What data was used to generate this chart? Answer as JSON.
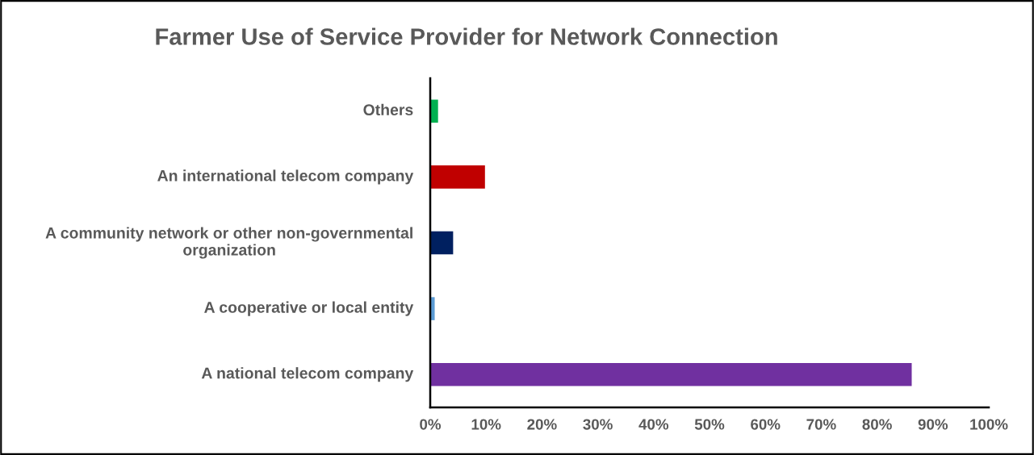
{
  "chart_data": {
    "type": "bar",
    "orientation": "horizontal",
    "title": "Farmer Use of Service Provider for Network Connection",
    "categories": [
      "Others",
      "An international telecom company",
      "A community network or other non-governmental organization",
      "A cooperative or local entity",
      "A national telecom company"
    ],
    "values": [
      1.4,
      9.8,
      4.1,
      0.8,
      86.2
    ],
    "colors": [
      "#00b050",
      "#c00000",
      "#002060",
      "#5b9bd5",
      "#7030a0"
    ],
    "xlim": [
      0,
      100
    ],
    "xticks": [
      {
        "value": 0,
        "label": "0%"
      },
      {
        "value": 10,
        "label": "10%"
      },
      {
        "value": 20,
        "label": "20%"
      },
      {
        "value": 30,
        "label": "30%"
      },
      {
        "value": 40,
        "label": "40%"
      },
      {
        "value": 50,
        "label": "50%"
      },
      {
        "value": 60,
        "label": "60%"
      },
      {
        "value": 70,
        "label": "70%"
      },
      {
        "value": 80,
        "label": "80%"
      },
      {
        "value": 90,
        "label": "90%"
      },
      {
        "value": 100,
        "label": "100%"
      }
    ],
    "grid": false,
    "legend": false
  }
}
